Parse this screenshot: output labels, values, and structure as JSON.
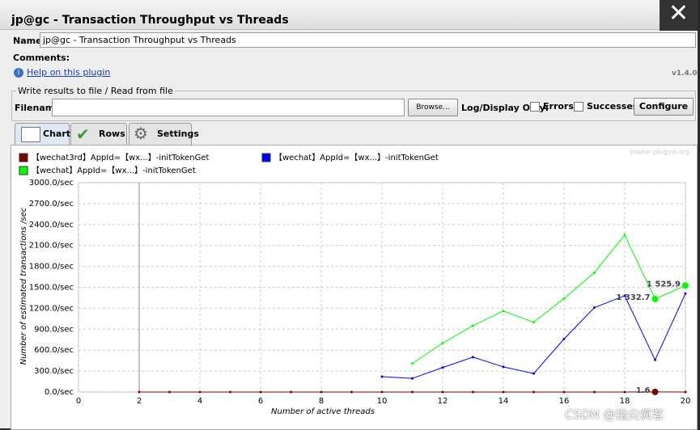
{
  "window": {
    "title": "jp@gc - Transaction Throughput vs Threads"
  },
  "form": {
    "name_label": "Name:",
    "name_value": "jp@gc - Transaction Throughput vs Threads",
    "comments_label": "Comments:",
    "help_link": "Help on this plugin",
    "version": "v1.4.0",
    "write_group": "Write results to file / Read from file",
    "filename_label": "Filename",
    "browse": "Browse...",
    "log_display": "Log/Display Only:",
    "errors": "Errors",
    "successes": "Successes",
    "configure": "Configure"
  },
  "tabs": [
    "Chart",
    "Rows",
    "Settings"
  ],
  "watermark": "jmeter-plugins.org",
  "footer": "CSDN @指尖疯客",
  "chart_data": {
    "type": "line",
    "x_label": "Number of active threads",
    "y_label": "Number of estimated transactions /sec",
    "grid": true,
    "xlim": [
      0,
      20
    ],
    "xticks": [
      0,
      2,
      4,
      6,
      8,
      10,
      12,
      14,
      16,
      18,
      20
    ],
    "ylim": [
      0,
      3000
    ],
    "yticks": [
      {
        "value": 0,
        "label": "0.0/sec"
      },
      {
        "value": 300,
        "label": "300.0/sec"
      },
      {
        "value": 600,
        "label": "600.0/sec"
      },
      {
        "value": 900,
        "label": "900.0/sec"
      },
      {
        "value": 1200,
        "label": "1200.0/sec"
      },
      {
        "value": 1500,
        "label": "1500.0/sec"
      },
      {
        "value": 1800,
        "label": "1800.0/sec"
      },
      {
        "value": 2100,
        "label": "2100.0/sec"
      },
      {
        "value": 2400,
        "label": "2400.0/sec"
      },
      {
        "value": 2700,
        "label": "2700.0/sec"
      },
      {
        "value": 3000,
        "label": "3000.0/sec"
      }
    ],
    "series": [
      {
        "name": "【wechat3rd】AppId=【wx...】-initTokenGet",
        "color": "#800000",
        "x": [
          2,
          3,
          4,
          5,
          6,
          7,
          8,
          9,
          10,
          11,
          12,
          13,
          14,
          15,
          16,
          17,
          18,
          19,
          20
        ],
        "values": [
          0,
          0,
          0,
          0,
          0,
          0,
          0,
          0,
          0,
          0,
          0,
          0,
          0,
          0,
          0,
          0,
          0,
          1.6,
          0
        ],
        "value_labels": [
          null,
          null,
          null,
          null,
          null,
          null,
          null,
          null,
          null,
          null,
          null,
          null,
          null,
          null,
          null,
          null,
          null,
          "1.6",
          null
        ]
      },
      {
        "name": "【wechat】AppId=【wx...】-initTokenGet",
        "color": "#0000ff",
        "x": [
          10,
          11,
          12,
          13,
          14,
          15,
          16,
          17,
          18,
          19,
          20
        ],
        "values": [
          220,
          195,
          350,
          500,
          360,
          265,
          760,
          1210,
          1380,
          460,
          1410
        ]
      },
      {
        "name": "【wechat】AppId=【wx...】-initTokenGet",
        "color": "#00ff00",
        "x": [
          11,
          12,
          13,
          14,
          15,
          16,
          17,
          18,
          19,
          20
        ],
        "values": [
          410,
          700,
          950,
          1160,
          1000,
          1340,
          1710,
          2250,
          1332.7,
          1525.9
        ],
        "value_labels": [
          null,
          null,
          null,
          null,
          null,
          null,
          null,
          null,
          "1 332.7",
          "1 525.9"
        ]
      }
    ]
  }
}
